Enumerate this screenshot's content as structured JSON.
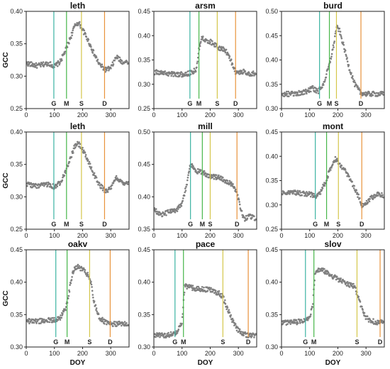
{
  "figure": {
    "x_label": "DOY",
    "y_label": "GCC",
    "marker_colors": {
      "G": "#3bb3a2",
      "M": "#46b649",
      "S": "#d4c64a",
      "D": "#e8923a"
    },
    "point_color": "#7f7f7f"
  },
  "chart_data": [
    {
      "type": "scatter",
      "title": "leth",
      "xlim": [
        0,
        365
      ],
      "ylim": [
        0.25,
        0.4
      ],
      "xticks": [
        0,
        100,
        200,
        300
      ],
      "yticks": [
        "0.25",
        "0.30",
        "0.35",
        "0.40"
      ],
      "ylabel": "GCC",
      "xlabel": "",
      "markers": [
        {
          "label": "G",
          "doy": 98
        },
        {
          "label": "M",
          "doy": 143
        },
        {
          "label": "S",
          "doy": 196
        },
        {
          "label": "D",
          "doy": 278
        }
      ],
      "series": [
        {
          "x": [
            0,
            40,
            80,
            100,
            120,
            140,
            160,
            170,
            180,
            190,
            200,
            220,
            240,
            260,
            280,
            300,
            320,
            340,
            365
          ],
          "y": [
            0.32,
            0.316,
            0.32,
            0.315,
            0.322,
            0.34,
            0.363,
            0.375,
            0.382,
            0.38,
            0.372,
            0.355,
            0.335,
            0.318,
            0.31,
            0.312,
            0.33,
            0.322,
            0.322
          ]
        }
      ]
    },
    {
      "type": "scatter",
      "title": "arsm",
      "xlim": [
        0,
        365
      ],
      "ylim": [
        0.25,
        0.45
      ],
      "xticks": [
        0,
        100,
        200,
        300
      ],
      "yticks": [
        "0.25",
        "0.30",
        "0.35",
        "0.40",
        "0.45"
      ],
      "ylabel": "",
      "xlabel": "",
      "markers": [
        {
          "label": "G",
          "doy": 128
        },
        {
          "label": "M",
          "doy": 160
        },
        {
          "label": "S",
          "doy": 225
        },
        {
          "label": "D",
          "doy": 290
        }
      ],
      "series": [
        {
          "x": [
            0,
            50,
            100,
            130,
            150,
            160,
            170,
            190,
            210,
            230,
            250,
            265,
            280,
            290,
            300,
            320,
            340,
            365
          ],
          "y": [
            0.325,
            0.322,
            0.32,
            0.323,
            0.33,
            0.372,
            0.397,
            0.39,
            0.385,
            0.375,
            0.372,
            0.36,
            0.34,
            0.326,
            0.324,
            0.326,
            0.322,
            0.322
          ]
        }
      ]
    },
    {
      "type": "scatter",
      "title": "burd",
      "xlim": [
        0,
        365
      ],
      "ylim": [
        0.3,
        0.5
      ],
      "xticks": [
        0,
        100,
        200,
        300
      ],
      "yticks": [
        "0.30",
        "0.35",
        "0.40",
        "0.45",
        "0.50"
      ],
      "ylabel": "",
      "xlabel": "",
      "markers": [
        {
          "label": "G",
          "doy": 135
        },
        {
          "label": "M",
          "doy": 170
        },
        {
          "label": "S",
          "doy": 195
        },
        {
          "label": "D",
          "doy": 282
        }
      ],
      "series": [
        {
          "x": [
            0,
            50,
            90,
            110,
            130,
            150,
            170,
            185,
            195,
            205,
            220,
            240,
            260,
            280,
            300,
            330,
            365
          ],
          "y": [
            0.33,
            0.33,
            0.335,
            0.342,
            0.335,
            0.352,
            0.39,
            0.43,
            0.467,
            0.462,
            0.43,
            0.385,
            0.35,
            0.333,
            0.33,
            0.33,
            0.33
          ]
        }
      ]
    },
    {
      "type": "scatter",
      "title": "leth",
      "xlim": [
        0,
        365
      ],
      "ylim": [
        0.25,
        0.4
      ],
      "xticks": [
        0,
        100,
        200,
        300
      ],
      "yticks": [
        "0.25",
        "0.30",
        "0.35",
        "0.40"
      ],
      "ylabel": "GCC",
      "xlabel": "",
      "markers": [
        {
          "label": "G",
          "doy": 98
        },
        {
          "label": "M",
          "doy": 143
        },
        {
          "label": "S",
          "doy": 196
        },
        {
          "label": "D",
          "doy": 278
        }
      ],
      "series": [
        {
          "x": [
            0,
            40,
            80,
            100,
            120,
            140,
            160,
            170,
            180,
            190,
            200,
            220,
            240,
            260,
            280,
            300,
            320,
            340,
            365
          ],
          "y": [
            0.32,
            0.316,
            0.32,
            0.315,
            0.322,
            0.34,
            0.363,
            0.375,
            0.382,
            0.38,
            0.372,
            0.355,
            0.335,
            0.318,
            0.31,
            0.312,
            0.33,
            0.322,
            0.322
          ]
        }
      ]
    },
    {
      "type": "scatter",
      "title": "mill",
      "xlim": [
        0,
        365
      ],
      "ylim": [
        0.35,
        0.5
      ],
      "xticks": [
        0,
        100,
        200,
        300
      ],
      "yticks": [
        "0.35",
        "0.40",
        "0.45",
        "0.50"
      ],
      "ylabel": "",
      "xlabel": "",
      "markers": [
        {
          "label": "G",
          "doy": 130
        },
        {
          "label": "M",
          "doy": 172
        },
        {
          "label": "S",
          "doy": 200
        },
        {
          "label": "D",
          "doy": 295
        }
      ],
      "series": [
        {
          "x": [
            0,
            30,
            60,
            80,
            100,
            120,
            130,
            150,
            170,
            200,
            230,
            260,
            280,
            295,
            305,
            320,
            340,
            365
          ],
          "y": [
            0.38,
            0.372,
            0.378,
            0.38,
            0.39,
            0.425,
            0.45,
            0.44,
            0.438,
            0.432,
            0.43,
            0.424,
            0.418,
            0.408,
            0.385,
            0.365,
            0.37,
            0.365
          ]
        }
      ]
    },
    {
      "type": "scatter",
      "title": "mont",
      "xlim": [
        0,
        365
      ],
      "ylim": [
        0.25,
        0.45
      ],
      "xticks": [
        0,
        100,
        200,
        300
      ],
      "yticks": [
        "0.25",
        "0.30",
        "0.35",
        "0.40",
        "0.45"
      ],
      "ylabel": "",
      "xlabel": "",
      "markers": [
        {
          "label": "G",
          "doy": 120
        },
        {
          "label": "M",
          "doy": 160
        },
        {
          "label": "S",
          "doy": 202
        },
        {
          "label": "D",
          "doy": 285
        }
      ],
      "series": [
        {
          "x": [
            0,
            50,
            100,
            120,
            140,
            160,
            180,
            190,
            200,
            220,
            240,
            260,
            275,
            285,
            300,
            320,
            340,
            365
          ],
          "y": [
            0.325,
            0.325,
            0.322,
            0.318,
            0.328,
            0.352,
            0.385,
            0.395,
            0.39,
            0.375,
            0.355,
            0.335,
            0.315,
            0.298,
            0.305,
            0.315,
            0.322,
            0.32
          ]
        }
      ]
    },
    {
      "type": "scatter",
      "title": "oakv",
      "xlim": [
        0,
        365
      ],
      "ylim": [
        0.3,
        0.45
      ],
      "xticks": [
        0,
        100,
        200,
        300
      ],
      "yticks": [
        "0.30",
        "0.35",
        "0.40",
        "0.45"
      ],
      "ylabel": "GCC",
      "xlabel": "DOY",
      "markers": [
        {
          "label": "G",
          "doy": 105
        },
        {
          "label": "M",
          "doy": 145
        },
        {
          "label": "S",
          "doy": 225
        },
        {
          "label": "D",
          "doy": 298
        }
      ],
      "series": [
        {
          "x": [
            0,
            50,
            100,
            120,
            140,
            150,
            160,
            170,
            180,
            200,
            220,
            230,
            240,
            260,
            280,
            300,
            330,
            365
          ],
          "y": [
            0.34,
            0.34,
            0.342,
            0.345,
            0.36,
            0.38,
            0.405,
            0.42,
            0.424,
            0.42,
            0.41,
            0.398,
            0.37,
            0.345,
            0.338,
            0.335,
            0.336,
            0.335
          ]
        }
      ]
    },
    {
      "type": "scatter",
      "title": "pace",
      "xlim": [
        0,
        365
      ],
      "ylim": [
        0.3,
        0.45
      ],
      "xticks": [
        0,
        100,
        200,
        300
      ],
      "yticks": [
        "0.30",
        "0.35",
        "0.40",
        "0.45"
      ],
      "ylabel": "",
      "xlabel": "DOY",
      "markers": [
        {
          "label": "G",
          "doy": 75
        },
        {
          "label": "M",
          "doy": 105
        },
        {
          "label": "S",
          "doy": 245
        },
        {
          "label": "D",
          "doy": 335
        }
      ],
      "series": [
        {
          "x": [
            0,
            40,
            70,
            85,
            100,
            110,
            120,
            150,
            200,
            230,
            245,
            260,
            280,
            300,
            320,
            335,
            350,
            365
          ],
          "y": [
            0.318,
            0.318,
            0.32,
            0.325,
            0.34,
            0.395,
            0.393,
            0.39,
            0.388,
            0.383,
            0.378,
            0.36,
            0.34,
            0.325,
            0.32,
            0.318,
            0.318,
            0.318
          ]
        }
      ]
    },
    {
      "type": "scatter",
      "title": "slov",
      "xlim": [
        0,
        365
      ],
      "ylim": [
        0.3,
        0.45
      ],
      "xticks": [
        0,
        100,
        200,
        300
      ],
      "yticks": [
        "0.30",
        "0.35",
        "0.40",
        "0.45"
      ],
      "ylabel": "",
      "xlabel": "DOY",
      "markers": [
        {
          "label": "G",
          "doy": 85
        },
        {
          "label": "M",
          "doy": 115
        },
        {
          "label": "S",
          "doy": 268
        },
        {
          "label": "D",
          "doy": 350
        }
      ],
      "series": [
        {
          "x": [
            0,
            40,
            80,
            100,
            110,
            120,
            140,
            170,
            200,
            230,
            260,
            270,
            285,
            300,
            320,
            340,
            365
          ],
          "y": [
            0.338,
            0.338,
            0.34,
            0.345,
            0.362,
            0.415,
            0.42,
            0.412,
            0.405,
            0.398,
            0.393,
            0.38,
            0.36,
            0.345,
            0.34,
            0.338,
            0.338
          ]
        }
      ]
    }
  ]
}
